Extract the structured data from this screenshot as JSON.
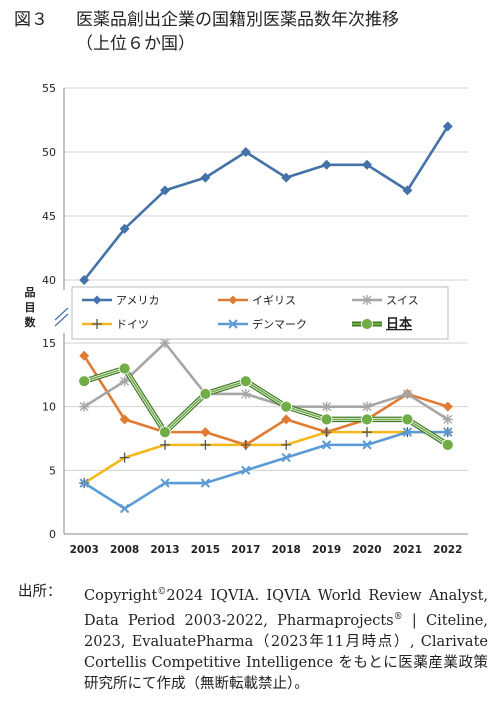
{
  "title": {
    "fig": "図３",
    "line1": "医薬品創出企業の国籍別医薬品数年次推移",
    "line2": "（上位６か国）"
  },
  "chart_data": {
    "type": "line",
    "ylabel": "品目数",
    "x": [
      "2003",
      "2008",
      "2013",
      "2015",
      "2017",
      "2018",
      "2019",
      "2020",
      "2021",
      "2022"
    ],
    "axis_break": true,
    "upper_ylim": [
      40,
      55
    ],
    "upper_yticks": [
      "40",
      "45",
      "50",
      "55"
    ],
    "lower_ylim": [
      0,
      15
    ],
    "lower_yticks": [
      "0",
      "5",
      "10",
      "15"
    ],
    "grid": true,
    "legend": "between-panels",
    "series": [
      {
        "name": "アメリカ",
        "color": "#4472a8",
        "marker": "diamond",
        "panel": "upper",
        "values": [
          40,
          44,
          47,
          48,
          50,
          48,
          49,
          49,
          47,
          52
        ]
      },
      {
        "name": "イギリス",
        "color": "#e07b33",
        "marker": "diamond",
        "panel": "lower",
        "values": [
          14,
          9,
          8,
          8,
          7,
          9,
          8,
          9,
          11,
          10
        ]
      },
      {
        "name": "スイス",
        "color": "#a6a6a6",
        "marker": "star",
        "panel": "lower",
        "values": [
          10,
          12,
          15,
          11,
          11,
          10,
          10,
          10,
          11,
          9
        ]
      },
      {
        "name": "ドイツ",
        "color": "#f4b81c",
        "marker": "plus",
        "panel": "lower",
        "values": [
          4,
          6,
          7,
          7,
          7,
          7,
          8,
          8,
          8,
          8
        ]
      },
      {
        "name": "デンマーク",
        "color": "#5b9bd5",
        "marker": "cross",
        "panel": "lower",
        "values": [
          4,
          2,
          4,
          4,
          5,
          6,
          7,
          7,
          8,
          8
        ]
      },
      {
        "name": "日本",
        "color": "#70ad47",
        "marker": "circle",
        "panel": "lower",
        "values": [
          12,
          13,
          8,
          11,
          12,
          10,
          9,
          9,
          9,
          7
        ]
      }
    ]
  },
  "source": {
    "lead": "出所：",
    "text1": "Copyright",
    "copy": "©",
    "text2": "2024 IQVIA. IQVIA World Review Analyst, Data Period 2003-2022, Pharmaprojects",
    "reg": "®",
    "text3": " | Citeline, 2023, EvaluatePharma（2023年11月時点）, Clarivate Cortellis Competitive Intelligence をもとに医薬産業政策研究所にて作成（無断転載禁止）。"
  }
}
